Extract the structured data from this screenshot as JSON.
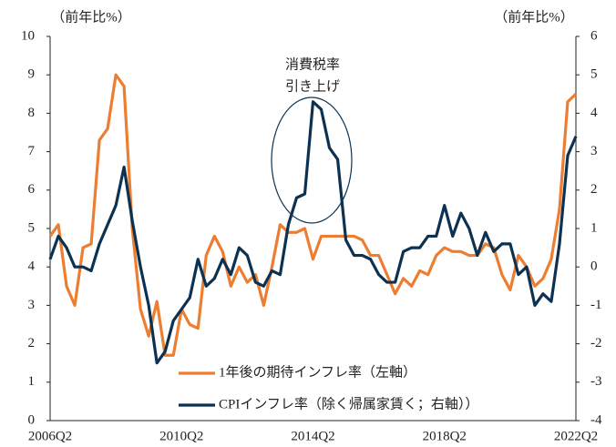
{
  "chart_data": {
    "type": "line",
    "y_label": "（前年比%）",
    "y2_label": "（前年比%）",
    "annotations": [
      "消費税率",
      "引き上げ"
    ],
    "categories": [
      "2006Q2",
      null,
      null,
      null,
      null,
      null,
      null,
      null,
      null,
      null,
      null,
      null,
      null,
      null,
      null,
      null,
      "2010Q2",
      null,
      null,
      null,
      null,
      null,
      null,
      null,
      null,
      null,
      null,
      null,
      null,
      null,
      null,
      null,
      "2014Q2",
      null,
      null,
      null,
      null,
      null,
      null,
      null,
      null,
      null,
      null,
      null,
      null,
      null,
      null,
      null,
      "2018Q2",
      null,
      null,
      null,
      null,
      null,
      null,
      null,
      null,
      null,
      null,
      null,
      null,
      null,
      null,
      null,
      "2022Q2"
    ],
    "ylim": [
      0,
      10
    ],
    "yticks": [
      0,
      1,
      2,
      3,
      4,
      5,
      6,
      7,
      8,
      9,
      10
    ],
    "y2lim": [
      -4,
      6
    ],
    "y2ticks": [
      -4,
      -3,
      -2,
      -1,
      0,
      1,
      2,
      3,
      4,
      5,
      6
    ],
    "grid": false,
    "series": [
      {
        "name": "1年後の期待インフレ率（左軸）",
        "color": "#ed7d31",
        "values": [
          4.8,
          5.1,
          3.5,
          3.0,
          4.5,
          4.6,
          7.3,
          7.6,
          9.0,
          8.7,
          5.0,
          2.9,
          2.2,
          3.1,
          1.7,
          1.7,
          2.9,
          2.5,
          2.4,
          4.3,
          4.8,
          4.4,
          3.5,
          4.0,
          3.6,
          3.8,
          3.0,
          4.0,
          5.1,
          4.9,
          4.9,
          5.0,
          4.2,
          4.8,
          4.8,
          4.8,
          4.8,
          4.8,
          4.7,
          4.3,
          4.3,
          3.8,
          3.3,
          3.7,
          3.5,
          3.9,
          3.8,
          4.3,
          4.5,
          4.4,
          4.4,
          4.3,
          4.3,
          4.6,
          4.5,
          3.8,
          3.4,
          4.3,
          4.0,
          3.5,
          3.7,
          4.2,
          5.5,
          8.3,
          8.5
        ]
      },
      {
        "name": "CPIインフレ率（除く帰属家賃く；右軸））",
        "color": "#0d3251",
        "axis": "y2",
        "values": [
          0.2,
          0.8,
          0.5,
          0.0,
          0.0,
          -0.1,
          0.6,
          1.1,
          1.6,
          2.6,
          1.2,
          0.0,
          -1.0,
          -2.5,
          -2.2,
          -1.4,
          -1.1,
          -0.8,
          0.2,
          -0.5,
          -0.3,
          0.2,
          -0.2,
          0.5,
          0.3,
          -0.4,
          -0.5,
          -0.1,
          -0.2,
          1.1,
          1.8,
          1.9,
          4.3,
          4.1,
          3.1,
          2.8,
          0.7,
          0.3,
          0.3,
          0.2,
          -0.2,
          -0.4,
          -0.4,
          0.4,
          0.5,
          0.5,
          0.8,
          0.8,
          1.6,
          0.8,
          1.4,
          1.0,
          0.3,
          0.9,
          0.4,
          0.6,
          0.6,
          -0.2,
          0.0,
          -1.0,
          -0.7,
          -0.9,
          0.6,
          2.9,
          3.4
        ]
      }
    ]
  }
}
